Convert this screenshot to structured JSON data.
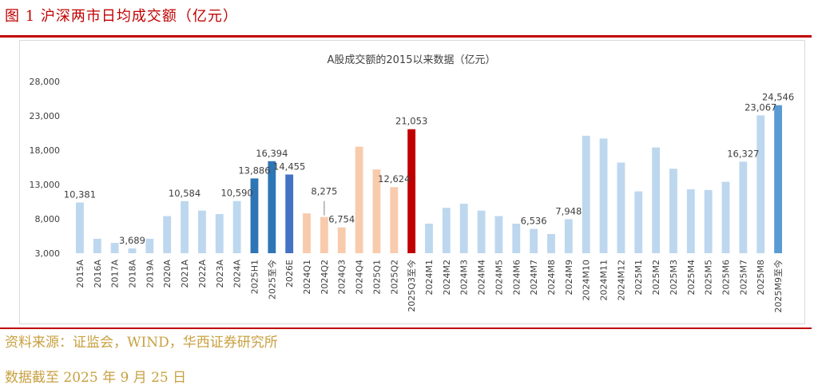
{
  "figure": {
    "title": "图 1  沪深两市日均成交额（亿元）",
    "source": "资料来源：证监会，WIND，华西证券研究所",
    "note": "数据截至 2025 年 9 月 25 日"
  },
  "colors": {
    "light_blue": "#bdd7ee",
    "mid_blue": "#2e75b6",
    "dark_blue": "#4472c4",
    "peach": "#f8cbad",
    "red": "#c00000",
    "bright_blue": "#5b9bd5",
    "accent_red": "#c00000"
  },
  "chart_data": {
    "type": "bar",
    "title": "A股成交额的2015以来数据（亿元）",
    "xlabel": "",
    "ylabel": "",
    "ylim": [
      3000,
      28000
    ],
    "yticks": [
      3000,
      8000,
      13000,
      18000,
      23000,
      28000
    ],
    "ytick_labels": [
      "3,000",
      "8,000",
      "13,000",
      "18,000",
      "23,000",
      "28,000"
    ],
    "categories": [
      "2015A",
      "2016A",
      "2017A",
      "2018A",
      "2019A",
      "2020A",
      "2021A",
      "2022A",
      "2023A",
      "2024A",
      "2025H1",
      "2025至今",
      "2026E",
      "2024Q1",
      "2024Q2",
      "2024Q3",
      "2024Q4",
      "2025Q1",
      "2025Q2",
      "2025Q3至今",
      "2024M1",
      "2024M2",
      "2024M3",
      "2024M4",
      "2024M5",
      "2024M6",
      "2024M7",
      "2024M8",
      "2024M9",
      "2024M10",
      "2024M11",
      "2024M12",
      "2025M1",
      "2025M2",
      "2025M3",
      "2025M4",
      "2025M5",
      "2025M6",
      "2025M7",
      "2025M8",
      "2025M9至今"
    ],
    "values": [
      10381,
      5100,
      4500,
      3689,
      5100,
      8400,
      10584,
      9200,
      8700,
      10590,
      13886,
      16394,
      14455,
      8800,
      8275,
      6754,
      18500,
      15200,
      12624,
      21053,
      7300,
      9600,
      10200,
      9200,
      8400,
      7300,
      6536,
      5800,
      7948,
      20100,
      19700,
      16200,
      12000,
      18400,
      15300,
      12300,
      12200,
      13400,
      16327,
      23067,
      24546
    ],
    "color_keys": [
      "light_blue",
      "light_blue",
      "light_blue",
      "light_blue",
      "light_blue",
      "light_blue",
      "light_blue",
      "light_blue",
      "light_blue",
      "light_blue",
      "mid_blue",
      "mid_blue",
      "dark_blue",
      "peach",
      "peach",
      "peach",
      "peach",
      "peach",
      "peach",
      "red",
      "light_blue",
      "light_blue",
      "light_blue",
      "light_blue",
      "light_blue",
      "light_blue",
      "light_blue",
      "light_blue",
      "light_blue",
      "light_blue",
      "light_blue",
      "light_blue",
      "light_blue",
      "light_blue",
      "light_blue",
      "light_blue",
      "light_blue",
      "light_blue",
      "light_blue",
      "light_blue",
      "bright_blue"
    ],
    "data_labels": [
      {
        "index": 0,
        "text": "10,381"
      },
      {
        "index": 3,
        "text": "3,689"
      },
      {
        "index": 6,
        "text": "10,584"
      },
      {
        "index": 9,
        "text": "10,590"
      },
      {
        "index": 10,
        "text": "13,886"
      },
      {
        "index": 11,
        "text": "16,394"
      },
      {
        "index": 12,
        "text": "14,455"
      },
      {
        "index": 14,
        "text": "8,275",
        "leader": true
      },
      {
        "index": 15,
        "text": "6,754"
      },
      {
        "index": 18,
        "text": "12,624"
      },
      {
        "index": 19,
        "text": "21,053"
      },
      {
        "index": 26,
        "text": "6,536"
      },
      {
        "index": 28,
        "text": "7,948"
      },
      {
        "index": 38,
        "text": "16,327"
      },
      {
        "index": 39,
        "text": "23,067"
      },
      {
        "index": 40,
        "text": "24,546"
      }
    ]
  }
}
